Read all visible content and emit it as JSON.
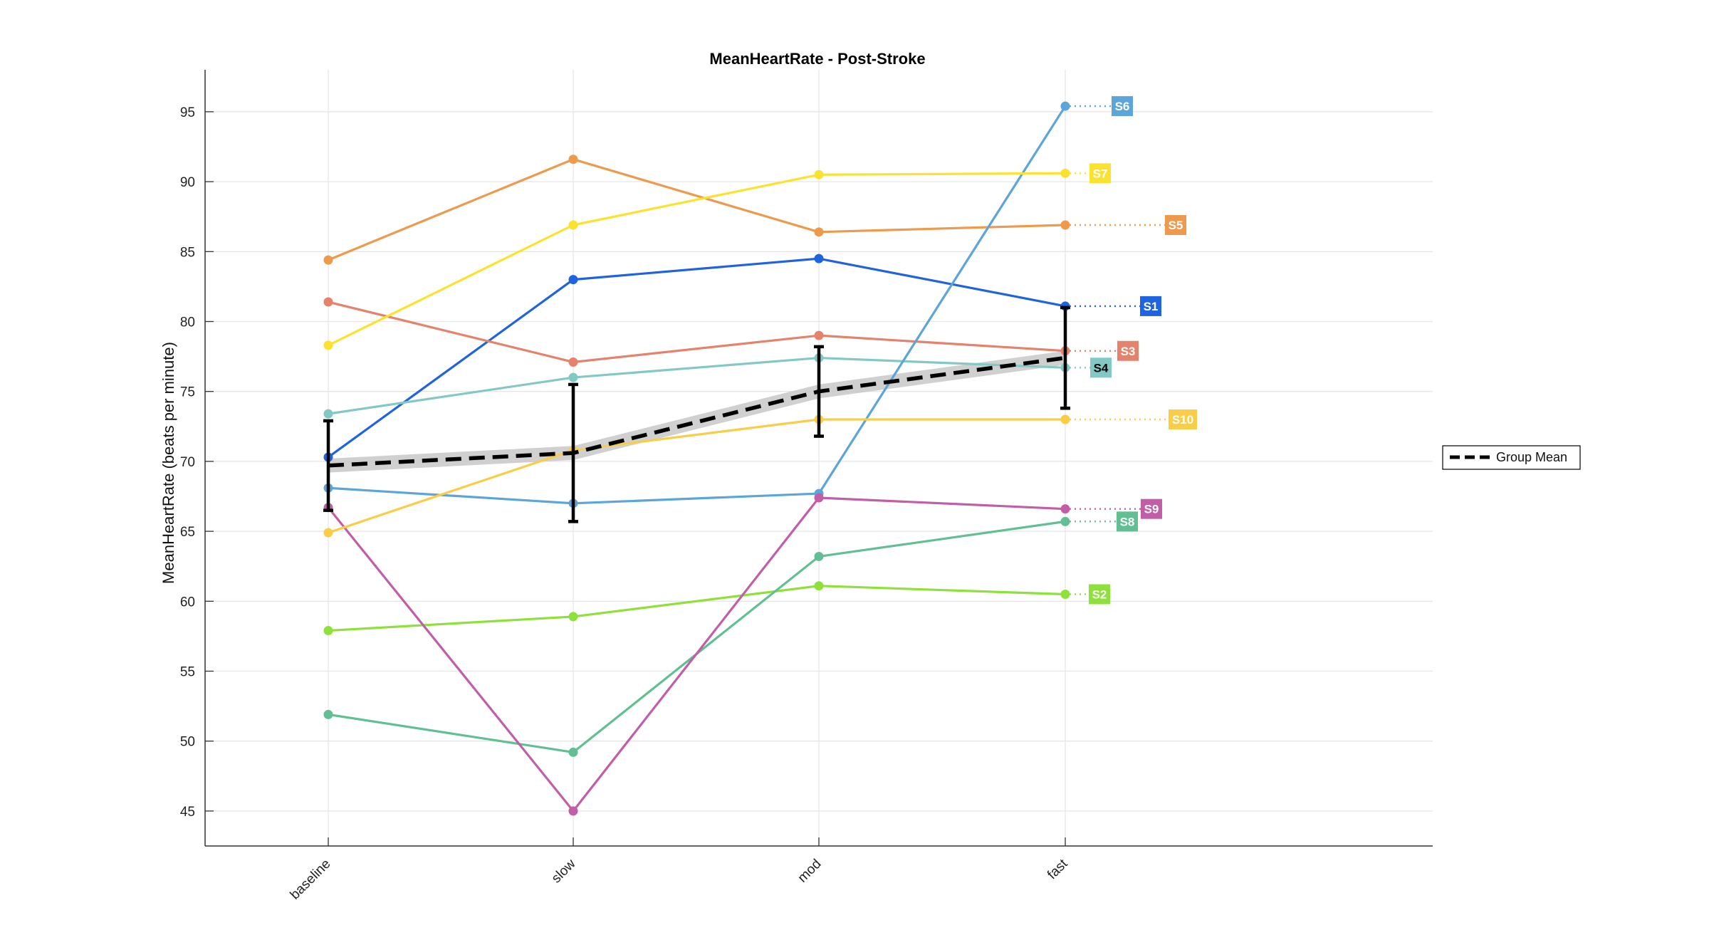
{
  "chart_data": {
    "type": "line",
    "title": "MeanHeartRate - Post-Stroke",
    "xlabel": "",
    "ylabel": "MeanHeartRate (beats per minute)",
    "categories": [
      "baseline",
      "slow",
      "mod",
      "fast"
    ],
    "ylim": [
      42.5,
      98
    ],
    "yticks": [
      45,
      50,
      55,
      60,
      65,
      70,
      75,
      80,
      85,
      90,
      95
    ],
    "grid": true,
    "legend_placement": "right",
    "series": [
      {
        "name": "S1",
        "color": "#1f63de",
        "values": [
          70.3,
          83.0,
          84.5,
          81.1
        ]
      },
      {
        "name": "S2",
        "color": "#8ee03a",
        "values": [
          57.9,
          58.9,
          61.1,
          60.5
        ]
      },
      {
        "name": "S3",
        "color": "#e5826b",
        "values": [
          81.4,
          77.1,
          79.0,
          77.9
        ]
      },
      {
        "name": "S4",
        "color": "#82c9c5",
        "values": [
          73.4,
          76.0,
          77.4,
          76.7
        ]
      },
      {
        "name": "S5",
        "color": "#ee9a4d",
        "values": [
          84.4,
          91.6,
          86.4,
          86.9
        ]
      },
      {
        "name": "S6",
        "color": "#5ba5d8",
        "values": [
          68.1,
          67.0,
          67.7,
          95.4
        ]
      },
      {
        "name": "S7",
        "color": "#fbe22e",
        "values": [
          78.3,
          86.9,
          90.5,
          90.6
        ]
      },
      {
        "name": "S8",
        "color": "#62bf94",
        "values": [
          51.9,
          49.2,
          63.2,
          65.7
        ]
      },
      {
        "name": "S9",
        "color": "#c25ea8",
        "values": [
          66.7,
          45.0,
          67.4,
          66.6
        ]
      },
      {
        "name": "S10",
        "color": "#f9cd46",
        "values": [
          64.9,
          70.8,
          73.0,
          73.0
        ]
      }
    ],
    "group_mean": {
      "name": "Group Mean",
      "color": "#000000",
      "values": [
        69.7,
        70.6,
        75.0,
        77.4
      ],
      "error": [
        3.2,
        4.9,
        3.2,
        3.6
      ],
      "band": 0.5
    }
  }
}
